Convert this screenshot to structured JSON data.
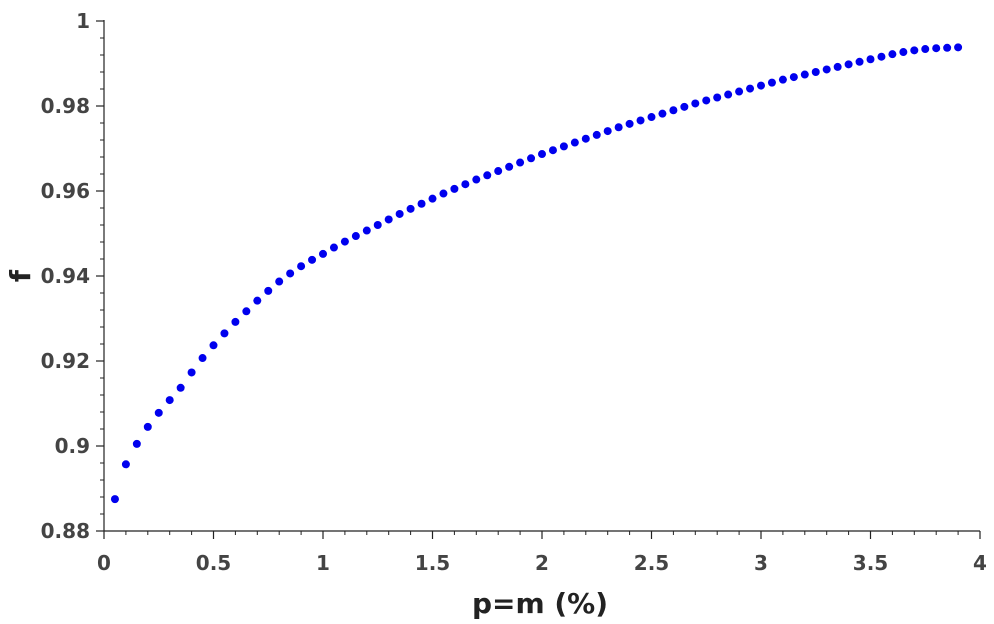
{
  "chart_data": {
    "type": "scatter",
    "xlabel": "p=m (%)",
    "ylabel": "f",
    "xlim": [
      0,
      4
    ],
    "ylim": [
      0.88,
      1.0
    ],
    "x_ticks": [
      0,
      0.5,
      1,
      1.5,
      2,
      2.5,
      3,
      3.5,
      4
    ],
    "x_tick_labels": [
      "0",
      "0.5",
      "1",
      "1.5",
      "2",
      "2.5",
      "3",
      "3.5",
      "4"
    ],
    "y_ticks": [
      0.88,
      0.9,
      0.92,
      0.94,
      0.96,
      0.98,
      1.0
    ],
    "y_tick_labels": [
      "0.88",
      "0.9",
      "0.92",
      "0.94",
      "0.96",
      "0.98",
      "1"
    ],
    "grid": false,
    "marker_color": "#0000ee",
    "series": [
      {
        "x": [
          0.05,
          0.1,
          0.15,
          0.2,
          0.25,
          0.3,
          0.35,
          0.4,
          0.45,
          0.5,
          0.55,
          0.6,
          0.65,
          0.7,
          0.75,
          0.8,
          0.85,
          0.9,
          0.95,
          1.0,
          1.05,
          1.1,
          1.15,
          1.2,
          1.25,
          1.3,
          1.35,
          1.4,
          1.45,
          1.5,
          1.55,
          1.6,
          1.65,
          1.7,
          1.75,
          1.8,
          1.85,
          1.9,
          1.95,
          2.0,
          2.05,
          2.1,
          2.15,
          2.2,
          2.25,
          2.3,
          2.35,
          2.4,
          2.45,
          2.5,
          2.55,
          2.6,
          2.65,
          2.7,
          2.75,
          2.8,
          2.85,
          2.9,
          2.95,
          3.0,
          3.05,
          3.1,
          3.15,
          3.2,
          3.25,
          3.3,
          3.35,
          3.4,
          3.45,
          3.5,
          3.55,
          3.6,
          3.65,
          3.7,
          3.75,
          3.8,
          3.85,
          3.9
        ],
        "y": [
          0.8875,
          0.8957,
          0.9005,
          0.9045,
          0.9078,
          0.9108,
          0.9137,
          0.9173,
          0.9207,
          0.9237,
          0.9265,
          0.9292,
          0.9317,
          0.9342,
          0.9365,
          0.9387,
          0.9406,
          0.9423,
          0.9438,
          0.9452,
          0.9467,
          0.9481,
          0.9494,
          0.9507,
          0.952,
          0.9533,
          0.9546,
          0.9558,
          0.957,
          0.9582,
          0.9594,
          0.9605,
          0.9616,
          0.9627,
          0.9637,
          0.9647,
          0.9657,
          0.9667,
          0.9677,
          0.9687,
          0.9696,
          0.9705,
          0.9714,
          0.9723,
          0.9732,
          0.9741,
          0.975,
          0.9758,
          0.9766,
          0.9774,
          0.9782,
          0.979,
          0.9798,
          0.9806,
          0.9813,
          0.982,
          0.9827,
          0.9834,
          0.9841,
          0.9848,
          0.9855,
          0.9862,
          0.9868,
          0.9874,
          0.988,
          0.9886,
          0.9892,
          0.9898,
          0.9904,
          0.991,
          0.9916,
          0.9922,
          0.9927,
          0.9931,
          0.9934,
          0.9936,
          0.9937,
          0.9938
        ]
      }
    ]
  }
}
